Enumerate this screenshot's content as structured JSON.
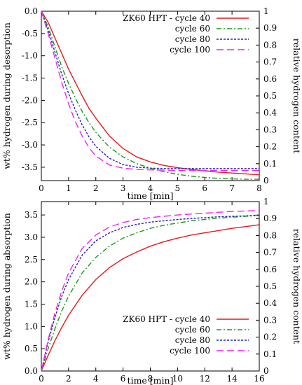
{
  "chart_data": [
    {
      "type": "line",
      "xlabel": "time [min]",
      "ylabel": "wt% hydrogen during desorption",
      "ylabel_right": "relative hydrogen content",
      "xlim": [
        0,
        8
      ],
      "ylim": [
        -3.8,
        0
      ],
      "ylim_right": [
        0,
        1
      ],
      "x_ticks": [
        0,
        1,
        2,
        3,
        4,
        5,
        6,
        7,
        8
      ],
      "y_ticks": [
        0.0,
        -0.5,
        -1.0,
        -1.5,
        -2.0,
        -2.5,
        -3.0,
        -3.5
      ],
      "y_tick_labels": [
        "0.0",
        "-0.5",
        "-1.0",
        "-1.5",
        "-2.0",
        "-2.5",
        "-3.0",
        "-3.5"
      ],
      "y_right_ticks": [
        0,
        0.1,
        0.2,
        0.3,
        0.4,
        0.5,
        0.6,
        0.7,
        0.8,
        0.9,
        1
      ],
      "y_right_tick_labels": [
        "0",
        "0.1",
        "0.2",
        "0.3",
        "0.4",
        "0.5",
        "0.6",
        "0.7",
        "0.8",
        "0.9",
        "1"
      ],
      "grid": false,
      "legend_position": "top-right",
      "series": [
        {
          "name": "ZK60 HPT - cycle 40",
          "color": "#e41a1c",
          "dash": "",
          "x": [
            0,
            0.25,
            0.5,
            0.75,
            1,
            1.25,
            1.5,
            1.75,
            2,
            2.5,
            3,
            3.5,
            4,
            4.5,
            5,
            5.5,
            6,
            6.5,
            7,
            7.5,
            8
          ],
          "y": [
            0,
            -0.25,
            -0.6,
            -0.95,
            -1.3,
            -1.6,
            -1.9,
            -2.18,
            -2.4,
            -2.8,
            -3.08,
            -3.27,
            -3.38,
            -3.46,
            -3.51,
            -3.55,
            -3.58,
            -3.61,
            -3.63,
            -3.65,
            -3.67
          ]
        },
        {
          "name": "cycle 60",
          "color": "#1a9a1a",
          "dash": "7 3 2 3",
          "x": [
            0,
            0.25,
            0.5,
            0.75,
            1,
            1.25,
            1.5,
            1.75,
            2,
            2.5,
            3,
            3.5,
            4,
            4.5,
            5,
            5.5,
            6,
            6.5,
            7,
            7.5,
            8
          ],
          "y": [
            0,
            -0.35,
            -0.8,
            -1.25,
            -1.62,
            -1.95,
            -2.25,
            -2.5,
            -2.72,
            -3.05,
            -3.27,
            -3.42,
            -3.52,
            -3.6,
            -3.66,
            -3.7,
            -3.73,
            -3.75,
            -3.76,
            -3.77,
            -3.77
          ]
        },
        {
          "name": "cycle 80",
          "color": "#2222bb",
          "dash": "3 2",
          "x": [
            0,
            0.25,
            0.5,
            0.75,
            1,
            1.25,
            1.5,
            1.75,
            2,
            2.5,
            3,
            3.5,
            4,
            4.5,
            5,
            6,
            7,
            8
          ],
          "y": [
            0,
            -0.42,
            -0.92,
            -1.42,
            -1.85,
            -2.22,
            -2.55,
            -2.82,
            -3.03,
            -3.3,
            -3.44,
            -3.5,
            -3.52,
            -3.53,
            -3.53,
            -3.53,
            -3.53,
            -3.53
          ]
        },
        {
          "name": "cycle 100",
          "color": "#ee22ee",
          "dash": "10 5",
          "x": [
            0,
            0.25,
            0.5,
            0.75,
            1,
            1.25,
            1.5,
            1.75,
            2,
            2.5,
            3,
            3.5,
            4,
            5,
            6,
            7,
            8
          ],
          "y": [
            0,
            -0.5,
            -1.05,
            -1.6,
            -2.08,
            -2.48,
            -2.8,
            -3.06,
            -3.25,
            -3.45,
            -3.52,
            -3.55,
            -3.56,
            -3.57,
            -3.57,
            -3.57,
            -3.57
          ]
        }
      ]
    },
    {
      "type": "line",
      "xlabel": "time [min]",
      "ylabel": "wt% hydrogen during absorption",
      "ylabel_right": "relative hydrogen content",
      "xlim": [
        0,
        16
      ],
      "ylim": [
        0,
        3.8
      ],
      "ylim_right": [
        0,
        1
      ],
      "x_ticks": [
        0,
        2,
        4,
        6,
        8,
        10,
        12,
        14,
        16
      ],
      "y_ticks": [
        0.0,
        0.5,
        1.0,
        1.5,
        2.0,
        2.5,
        3.0,
        3.5
      ],
      "y_tick_labels": [
        "0.0",
        "0.5",
        "1.0",
        "1.5",
        "2.0",
        "2.5",
        "3.0",
        "3.5"
      ],
      "y_right_ticks": [
        0,
        0.1,
        0.2,
        0.3,
        0.4,
        0.5,
        0.6,
        0.7,
        0.8,
        0.9,
        1
      ],
      "y_right_tick_labels": [
        "0",
        "0.1",
        "0.2",
        "0.3",
        "0.4",
        "0.5",
        "0.6",
        "0.7",
        "0.8",
        "0.9",
        "1"
      ],
      "grid": false,
      "legend_position": "bottom-right",
      "series": [
        {
          "name": "ZK60 HPT - cycle 40",
          "color": "#e41a1c",
          "dash": "",
          "x": [
            0,
            0.5,
            1,
            1.5,
            2,
            3,
            4,
            5,
            6,
            7,
            8,
            9,
            10,
            11,
            12,
            13,
            14,
            15,
            16
          ],
          "y": [
            0,
            0.35,
            0.68,
            0.98,
            1.25,
            1.7,
            2.05,
            2.32,
            2.52,
            2.67,
            2.8,
            2.9,
            2.98,
            3.05,
            3.1,
            3.15,
            3.2,
            3.24,
            3.28
          ]
        },
        {
          "name": "cycle 60",
          "color": "#1a9a1a",
          "dash": "7 3 2 3",
          "x": [
            0,
            0.5,
            1,
            1.5,
            2,
            3,
            4,
            5,
            6,
            7,
            8,
            9,
            10,
            11,
            12,
            13,
            14,
            15,
            16
          ],
          "y": [
            0,
            0.5,
            0.95,
            1.35,
            1.68,
            2.2,
            2.55,
            2.8,
            2.98,
            3.1,
            3.2,
            3.27,
            3.32,
            3.37,
            3.4,
            3.43,
            3.45,
            3.47,
            3.49
          ]
        },
        {
          "name": "cycle 80",
          "color": "#2222bb",
          "dash": "3 2",
          "x": [
            0,
            0.5,
            1,
            1.5,
            2,
            3,
            4,
            5,
            6,
            7,
            8,
            9,
            10,
            11,
            12,
            13,
            14,
            15,
            16
          ],
          "y": [
            0,
            0.65,
            1.2,
            1.68,
            2.05,
            2.6,
            2.92,
            3.1,
            3.22,
            3.29,
            3.34,
            3.37,
            3.4,
            3.42,
            3.44,
            3.46,
            3.47,
            3.48,
            3.5
          ]
        },
        {
          "name": "cycle 100",
          "color": "#ee22ee",
          "dash": "10 5",
          "x": [
            0,
            0.5,
            1,
            1.5,
            2,
            3,
            4,
            5,
            6,
            7,
            8,
            9,
            10,
            11,
            12,
            13,
            14,
            15,
            16
          ],
          "y": [
            0,
            0.7,
            1.3,
            1.8,
            2.2,
            2.75,
            3.05,
            3.23,
            3.33,
            3.4,
            3.44,
            3.47,
            3.5,
            3.52,
            3.54,
            3.56,
            3.58,
            3.59,
            3.6
          ]
        }
      ]
    }
  ]
}
